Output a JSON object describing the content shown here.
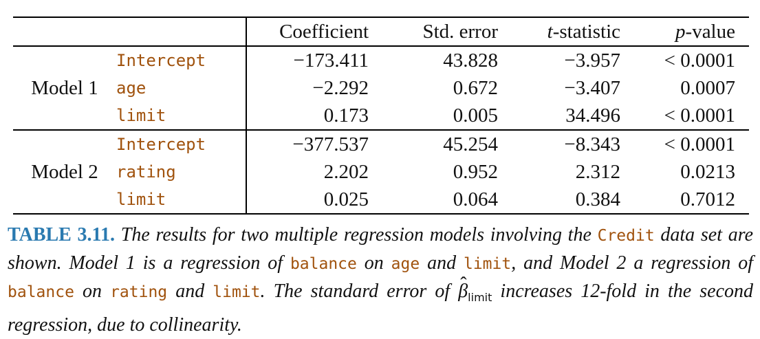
{
  "table": {
    "headers": {
      "coefficient": "Coefficient",
      "std_error": "Std. error",
      "t_stat_italic": "t",
      "t_stat_rest": "-statistic",
      "p_value_italic": "p",
      "p_value_rest": "-value"
    },
    "models": [
      {
        "name": "Model 1",
        "rows": [
          {
            "variable": "Intercept",
            "coefficient": "−173.411",
            "std_error": "43.828",
            "t_statistic": "−3.957",
            "p_value": "< 0.0001"
          },
          {
            "variable": "age",
            "coefficient": "−2.292",
            "std_error": "0.672",
            "t_statistic": "−3.407",
            "p_value": "0.0007"
          },
          {
            "variable": "limit",
            "coefficient": "0.173",
            "std_error": "0.005",
            "t_statistic": "34.496",
            "p_value": "< 0.0001"
          }
        ]
      },
      {
        "name": "Model 2",
        "rows": [
          {
            "variable": "Intercept",
            "coefficient": "−377.537",
            "std_error": "45.254",
            "t_statistic": "−8.343",
            "p_value": "< 0.0001"
          },
          {
            "variable": "rating",
            "coefficient": "2.202",
            "std_error": "0.952",
            "t_statistic": "2.312",
            "p_value": "0.0213"
          },
          {
            "variable": "limit",
            "coefficient": "0.025",
            "std_error": "0.064",
            "t_statistic": "0.384",
            "p_value": "0.7012"
          }
        ]
      }
    ]
  },
  "caption": {
    "label": "TABLE 3.11.",
    "t1": " The results for two multiple regression models involving the ",
    "c1": "Credit",
    "t2": " data set are shown. Model 1 is a regression of ",
    "c2": "balance",
    "t3": " on ",
    "c3": "age",
    "t4": " and ",
    "c4": "limit",
    "t5": ", and Model 2 a regression of ",
    "c5": "balance",
    "t6": " on ",
    "c6": "rating",
    "t7": " and ",
    "c7": "limit",
    "t8": ". The standard error of ",
    "beta_symbol": "β",
    "beta_hat": "ˆ",
    "beta_subscript": "limit",
    "t9": " increases 12-fold in the second regression, due to collinearity."
  }
}
